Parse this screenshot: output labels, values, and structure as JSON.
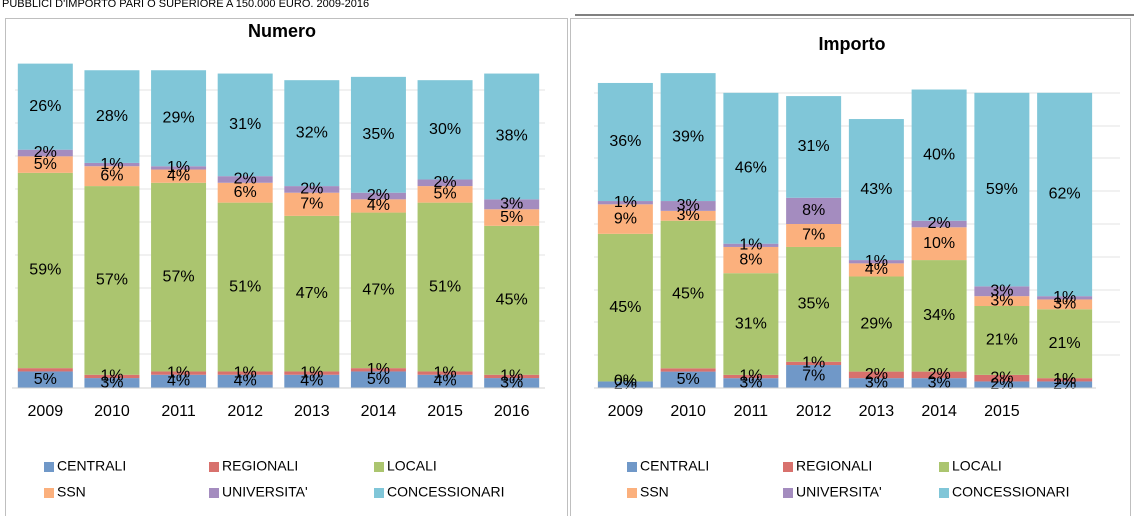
{
  "header": {
    "title": "PUBBLICI D'IMPORTO PARI O SUPERIORE A 150.000 EURO. 2009-2016"
  },
  "chart_data": [
    {
      "type": "bar",
      "stacked": true,
      "title": "Numero",
      "legend": "bottom",
      "ylim": [
        0,
        100
      ],
      "categories": [
        "2009",
        "2010",
        "2011",
        "2012",
        "2013",
        "2014",
        "2015",
        "2016"
      ],
      "series": [
        {
          "name": "CENTRALI",
          "color": "#7098c8",
          "values": [
            5,
            3,
            4,
            4,
            4,
            5,
            4,
            3
          ],
          "value_labels": [
            "5%",
            "3%",
            "4%",
            "4%",
            "4%",
            "5%",
            "4%",
            "3%"
          ]
        },
        {
          "name": "REGIONALI",
          "color": "#d8716d",
          "values": [
            1,
            1,
            1,
            1,
            1,
            1,
            1,
            1
          ],
          "value_labels": [
            null,
            "1%",
            "1%",
            "1%",
            "1%",
            "1%",
            "1%",
            "1%"
          ]
        },
        {
          "name": "LOCALI",
          "color": "#abc56f",
          "values": [
            59,
            57,
            57,
            51,
            47,
            47,
            51,
            45
          ],
          "value_labels": [
            "59%",
            "57%",
            "57%",
            "51%",
            "47%",
            "47%",
            "51%",
            "45%"
          ]
        },
        {
          "name": "SSN",
          "color": "#fbb07d",
          "values": [
            5,
            6,
            4,
            6,
            7,
            4,
            5,
            5
          ],
          "value_labels": [
            "5%",
            "6%",
            "4%",
            "6%",
            "7%",
            "4%",
            "5%",
            "5%"
          ]
        },
        {
          "name": "UNIVERSITA'",
          "color": "#a48cbf",
          "values": [
            2,
            1,
            1,
            2,
            2,
            2,
            2,
            3
          ],
          "value_labels": [
            "2%",
            "1%",
            "1%",
            "2%",
            "2%",
            "2%",
            "2%",
            "3%"
          ]
        },
        {
          "name": "CONCESSIONARI",
          "color": "#80c6d8",
          "values": [
            26,
            28,
            29,
            31,
            32,
            35,
            30,
            38
          ],
          "value_labels": [
            "26%",
            "28%",
            "29%",
            "31%",
            "32%",
            "35%",
            "30%",
            "38%"
          ]
        }
      ]
    },
    {
      "type": "bar",
      "stacked": true,
      "title": "Importo",
      "legend": "bottom",
      "ylim": [
        0,
        100
      ],
      "categories": [
        "2009",
        "2010",
        "2011",
        "2012",
        "2013",
        "2014",
        "2015",
        null
      ],
      "series": [
        {
          "name": "CENTRALI",
          "color": "#7098c8",
          "values": [
            2,
            5,
            3,
            7,
            3,
            3,
            2,
            2
          ],
          "value_labels": [
            "2%",
            "5%",
            "3%",
            "7%",
            "3%",
            "3%",
            "2%",
            "2%"
          ]
        },
        {
          "name": "REGIONALI",
          "color": "#d8716d",
          "values": [
            0,
            1,
            1,
            1,
            2,
            2,
            2,
            1
          ],
          "value_labels": [
            "0%",
            null,
            "1%",
            "1%",
            "2%",
            "2%",
            "2%",
            "1%"
          ]
        },
        {
          "name": "LOCALI",
          "color": "#abc56f",
          "values": [
            45,
            45,
            31,
            35,
            29,
            34,
            21,
            21
          ],
          "value_labels": [
            "45%",
            "45%",
            "31%",
            "35%",
            "29%",
            "34%",
            "21%",
            "21%"
          ]
        },
        {
          "name": "SSN",
          "color": "#fbb07d",
          "values": [
            9,
            3,
            8,
            7,
            4,
            10,
            3,
            3
          ],
          "value_labels": [
            "9%",
            "3%",
            "8%",
            "7%",
            "4%",
            "10%",
            "3%",
            "3%"
          ]
        },
        {
          "name": "UNIVERSITA'",
          "color": "#a48cbf",
          "values": [
            1,
            3,
            1,
            8,
            1,
            2,
            3,
            1
          ],
          "value_labels": [
            "1%",
            "3%",
            "1%",
            "8%",
            "1%",
            "2%",
            "3%",
            "1%"
          ]
        },
        {
          "name": "CONCESSIONARI",
          "color": "#80c6d8",
          "values": [
            36,
            39,
            46,
            31,
            43,
            40,
            59,
            62
          ],
          "value_labels": [
            "36%",
            "39%",
            "46%",
            "31%",
            "43%",
            "40%",
            "59%",
            "62%"
          ]
        }
      ]
    }
  ]
}
